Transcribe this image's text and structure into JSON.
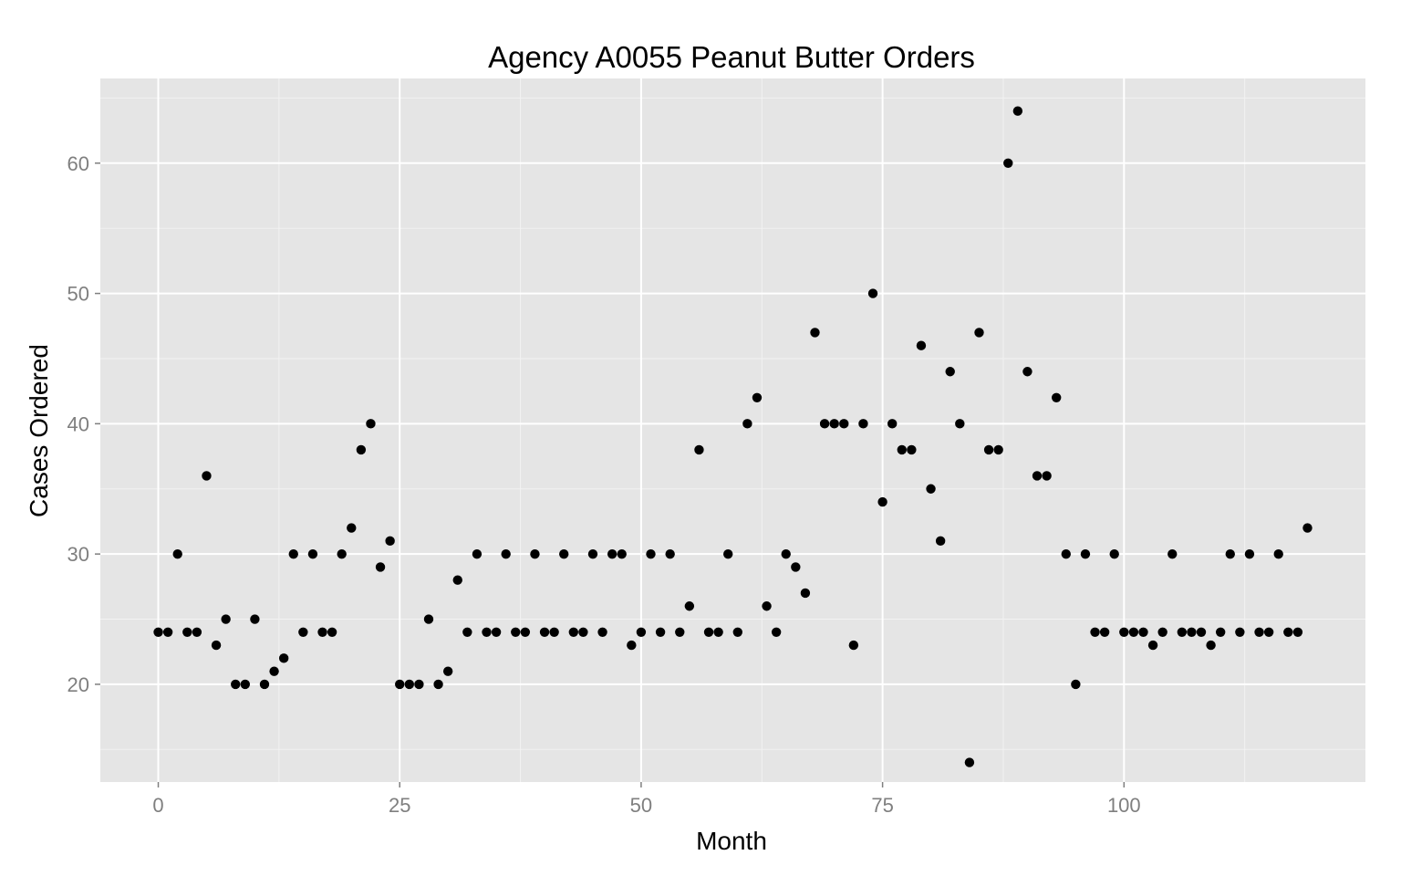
{
  "chart_data": {
    "type": "scatter",
    "title": "Agency A0055 Peanut Butter Orders",
    "xlabel": "Month",
    "ylabel": "Cases Ordered",
    "xlim": [
      -6,
      125
    ],
    "ylim": [
      12.5,
      66.5
    ],
    "x_ticks": [
      0,
      25,
      50,
      75,
      100
    ],
    "y_ticks": [
      20,
      30,
      40,
      50,
      60
    ],
    "x_tick_labels": [
      "0",
      "25",
      "50",
      "75",
      "100"
    ],
    "y_tick_labels": [
      "20",
      "30",
      "40",
      "50",
      "60"
    ],
    "grid": true,
    "colors": {
      "panel": "#e5e5e5",
      "grid_major": "#ffffff",
      "grid_minor": "#f2f2f2",
      "point": "#000000",
      "tick_label": "#7f7f7f"
    },
    "x": [
      0,
      1,
      2,
      3,
      4,
      5,
      6,
      7,
      8,
      9,
      10,
      11,
      12,
      13,
      14,
      15,
      16,
      17,
      18,
      19,
      20,
      21,
      22,
      23,
      24,
      25,
      26,
      27,
      28,
      29,
      30,
      31,
      32,
      33,
      34,
      35,
      36,
      37,
      38,
      39,
      40,
      41,
      42,
      43,
      44,
      45,
      46,
      47,
      48,
      49,
      50,
      51,
      52,
      53,
      54,
      55,
      56,
      57,
      58,
      59,
      60,
      61,
      62,
      63,
      64,
      65,
      66,
      67,
      68,
      69,
      70,
      71,
      72,
      73,
      74,
      75,
      76,
      77,
      78,
      79,
      80,
      81,
      82,
      83,
      84,
      85,
      86,
      87,
      88,
      89,
      90,
      91,
      92,
      93,
      94,
      95,
      96,
      97,
      98,
      99,
      100,
      101,
      102,
      103,
      104,
      105,
      106,
      107,
      108,
      109,
      110,
      111,
      112,
      113,
      114,
      115,
      116,
      117,
      118,
      119
    ],
    "y": [
      24,
      24,
      30,
      24,
      24,
      36,
      23,
      25,
      20,
      20,
      25,
      20,
      21,
      22,
      30,
      24,
      30,
      24,
      24,
      30,
      32,
      38,
      40,
      29,
      31,
      20,
      20,
      20,
      25,
      20,
      21,
      28,
      24,
      30,
      24,
      24,
      30,
      24,
      24,
      30,
      24,
      24,
      30,
      24,
      24,
      30,
      24,
      30,
      30,
      23,
      24,
      30,
      24,
      30,
      24,
      26,
      38,
      24,
      24,
      30,
      24,
      40,
      42,
      26,
      24,
      30,
      29,
      27,
      47,
      40,
      40,
      40,
      23,
      40,
      50,
      34,
      40,
      38,
      38,
      46,
      35,
      31,
      44,
      40,
      14,
      47,
      38,
      38,
      60,
      64,
      44,
      36,
      36,
      42,
      30,
      20,
      30,
      24,
      24,
      30,
      24,
      24,
      24,
      23,
      24,
      30,
      24,
      24,
      24,
      23,
      24,
      30,
      24,
      30,
      24,
      24,
      30,
      24,
      24,
      32
    ]
  }
}
